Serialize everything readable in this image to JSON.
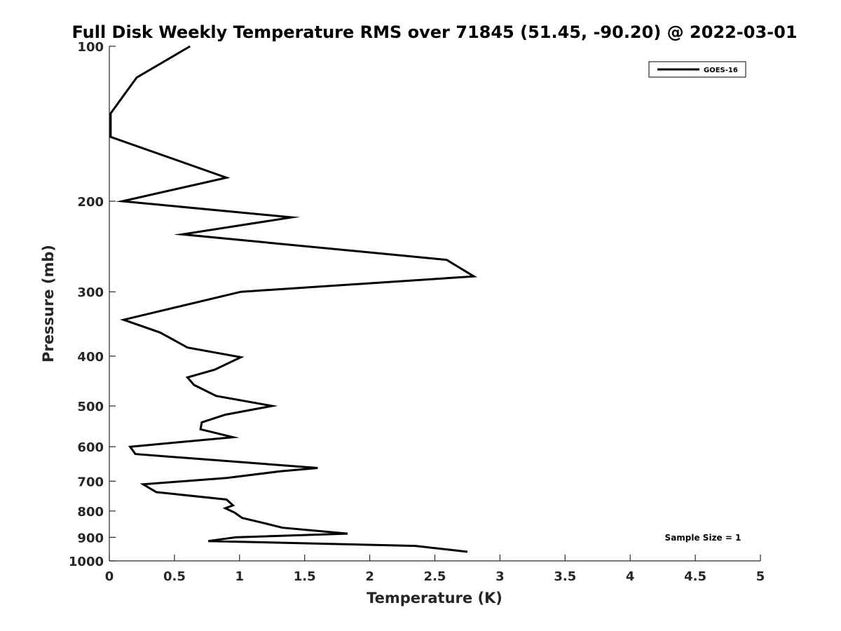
{
  "chart_data": {
    "type": "line",
    "title": "Full Disk Weekly Temperature RMS over 71845 (51.45, -90.20) @ 2022-03-01",
    "xlabel": "Temperature (K)",
    "ylabel": "Pressure (mb)",
    "xlim": [
      0,
      5
    ],
    "ylim": [
      1000,
      100
    ],
    "yscale": "log",
    "y_reversed": true,
    "xticks": [
      0,
      0.5,
      1,
      1.5,
      2,
      2.5,
      3,
      3.5,
      4,
      4.5,
      5
    ],
    "xtick_labels": [
      "0",
      "0.5",
      "1",
      "1.5",
      "2",
      "2.5",
      "3",
      "3.5",
      "4",
      "4.5",
      "5"
    ],
    "yticks": [
      100,
      200,
      300,
      400,
      500,
      600,
      700,
      800,
      900,
      1000
    ],
    "ytick_labels": [
      "100",
      "200",
      "300",
      "400",
      "500",
      "600",
      "700",
      "800",
      "900",
      "1000"
    ],
    "grid": false,
    "legend_position": "top-right",
    "annotation": "Sample Size = 1",
    "series": [
      {
        "name": "GOES-16",
        "color": "#000000",
        "x": [
          0.62,
          0.21,
          0.01,
          0.01,
          0.9,
          0.1,
          1.4,
          0.56,
          2.59,
          2.8,
          1.01,
          0.11,
          0.39,
          0.6,
          1.01,
          0.81,
          0.6,
          0.65,
          0.82,
          1.25,
          0.89,
          0.71,
          0.7,
          0.95,
          0.16,
          0.2,
          1.6,
          1.31,
          0.9,
          0.26,
          0.36,
          0.9,
          0.95,
          0.89,
          0.96,
          1.02,
          1.15,
          1.33,
          1.83,
          0.97,
          0.76,
          2.35,
          2.75
        ],
        "y": [
          100,
          115,
          135,
          150,
          180,
          200,
          215,
          232,
          260,
          280,
          300,
          340,
          360,
          385,
          402,
          425,
          440,
          455,
          478,
          500,
          520,
          538,
          555,
          575,
          600,
          620,
          660,
          670,
          690,
          710,
          735,
          760,
          780,
          790,
          805,
          825,
          840,
          862,
          885,
          900,
          915,
          935,
          960
        ]
      }
    ]
  }
}
